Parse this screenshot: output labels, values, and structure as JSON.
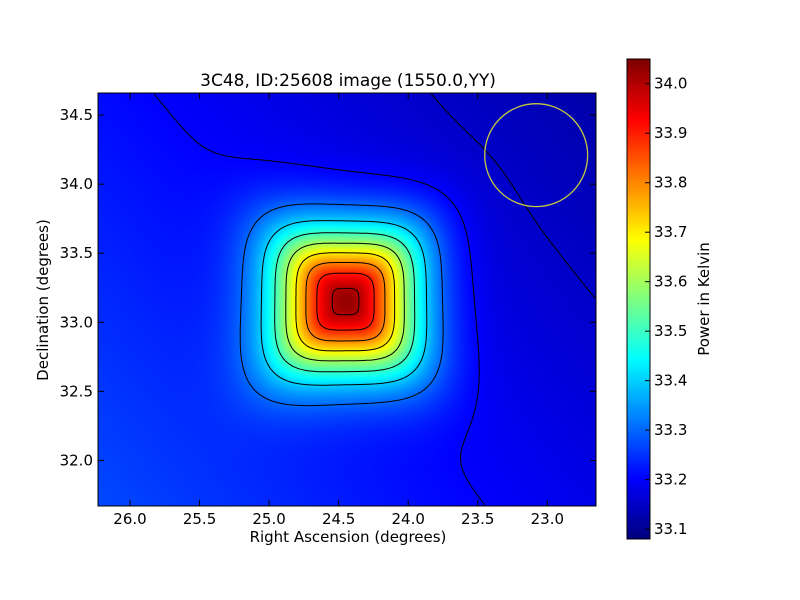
{
  "chart_data": {
    "type": "heatmap",
    "title": "3C48, ID:25608 image (1550.0,YY)",
    "xlabel": "Right Ascension (degrees)",
    "ylabel": "Declination (degrees)",
    "colorbar_label": "Power in Kelvin",
    "colormap": "jet",
    "xlim": [
      26.23,
      22.65
    ],
    "ylim": [
      31.67,
      34.66
    ],
    "x_ticks": [
      26.0,
      25.5,
      25.0,
      24.5,
      24.0,
      23.5,
      23.0
    ],
    "x_tick_labels": [
      "26.0",
      "25.5",
      "25.0",
      "24.5",
      "24.0",
      "23.5",
      "23.0"
    ],
    "y_ticks": [
      32.0,
      32.5,
      33.0,
      33.5,
      34.0,
      34.5
    ],
    "y_tick_labels": [
      "32.0",
      "32.5",
      "33.0",
      "33.5",
      "34.0",
      "34.5"
    ],
    "colorbar_range": [
      33.08,
      34.05
    ],
    "colorbar_ticks": [
      33.1,
      33.2,
      33.3,
      33.4,
      33.5,
      33.6,
      33.7,
      33.8,
      33.9,
      34.0
    ],
    "colorbar_tick_labels": [
      "33.1",
      "33.2",
      "33.3",
      "33.4",
      "33.5",
      "33.6",
      "33.7",
      "33.8",
      "33.9",
      "34.0"
    ],
    "peak": {
      "ra": 24.45,
      "dec": 33.15,
      "value": 34.03
    },
    "background_gradient": {
      "low_corner_value": 33.12,
      "high_corner_value": 33.27
    },
    "contour_levels": [
      33.15,
      33.2,
      33.3,
      33.4,
      33.5,
      33.6,
      33.7,
      33.8,
      33.9,
      34.0
    ],
    "marker_circle": {
      "ra": 23.08,
      "dec": 34.21,
      "radius_deg": 0.37,
      "color": "#c8c840"
    },
    "grid": false
  }
}
